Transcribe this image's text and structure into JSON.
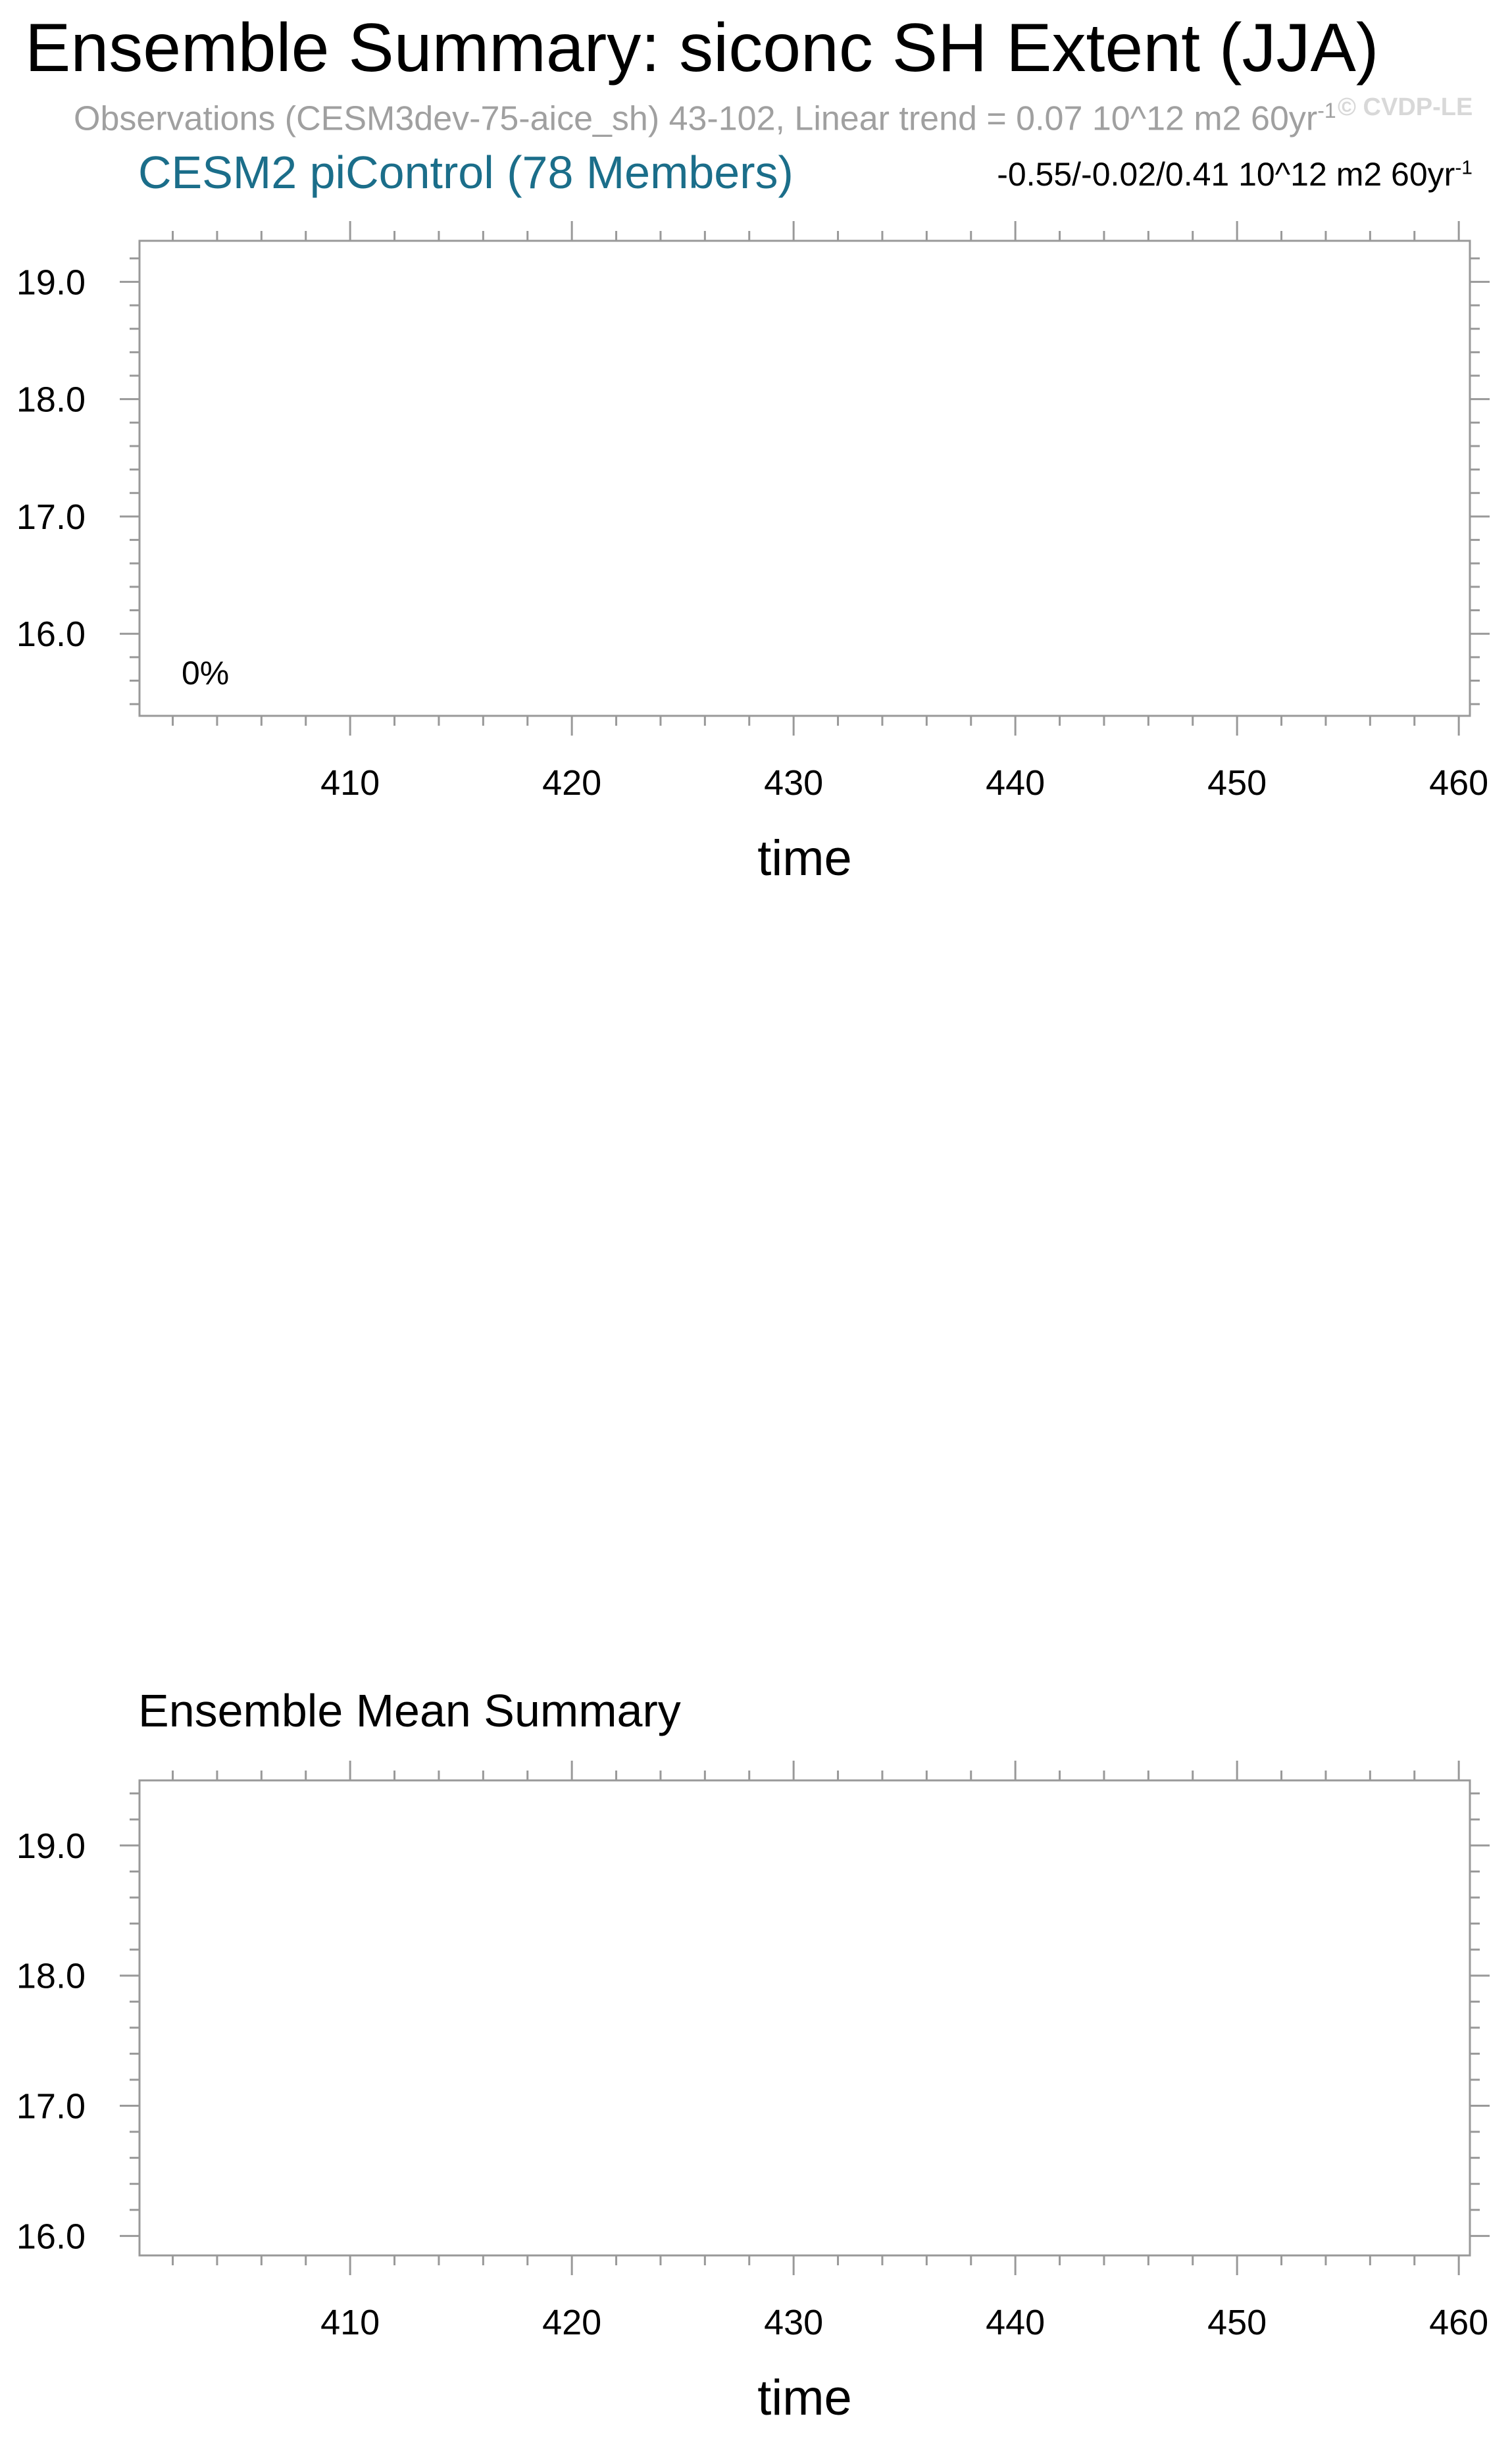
{
  "title": "Ensemble Summary: siconc SH Extent (JJA)",
  "observations": {
    "text": "Observations (CESM3dev-75-aice_sh) 43-102, Linear trend = 0.07 10^12 m2 60yr",
    "superscript": "-1"
  },
  "watermark": "© CVDP-LE",
  "chart_data": [
    {
      "type": "line",
      "title": "CESM2 piControl (78 Members)",
      "trend_text": "-0.55/-0.02/0.41 10^12 m2 60yr",
      "trend_superscript": "-1",
      "annotation": "0%",
      "xlabel": "time",
      "ylabel": "",
      "xlim": [
        400.5,
        460.5
      ],
      "ylim": [
        15.3,
        19.35
      ],
      "xticks": [
        410,
        420,
        430,
        440,
        450,
        460
      ],
      "xtick_labels": [
        "410",
        "420",
        "430",
        "440",
        "450",
        "460"
      ],
      "yticks": [
        16.0,
        17.0,
        18.0,
        19.0
      ],
      "ytick_labels": [
        "16.0",
        "17.0",
        "18.0",
        "19.0"
      ],
      "series": []
    },
    {
      "type": "line",
      "title": "Ensemble Mean Summary",
      "xlabel": "time",
      "ylabel": "",
      "xlim": [
        400.5,
        460.5
      ],
      "ylim": [
        15.85,
        19.5
      ],
      "xticks": [
        410,
        420,
        430,
        440,
        450,
        460
      ],
      "xtick_labels": [
        "410",
        "420",
        "430",
        "440",
        "450",
        "460"
      ],
      "yticks": [
        16.0,
        17.0,
        18.0,
        19.0
      ],
      "ytick_labels": [
        "16.0",
        "17.0",
        "18.0",
        "19.0"
      ],
      "series": []
    }
  ]
}
